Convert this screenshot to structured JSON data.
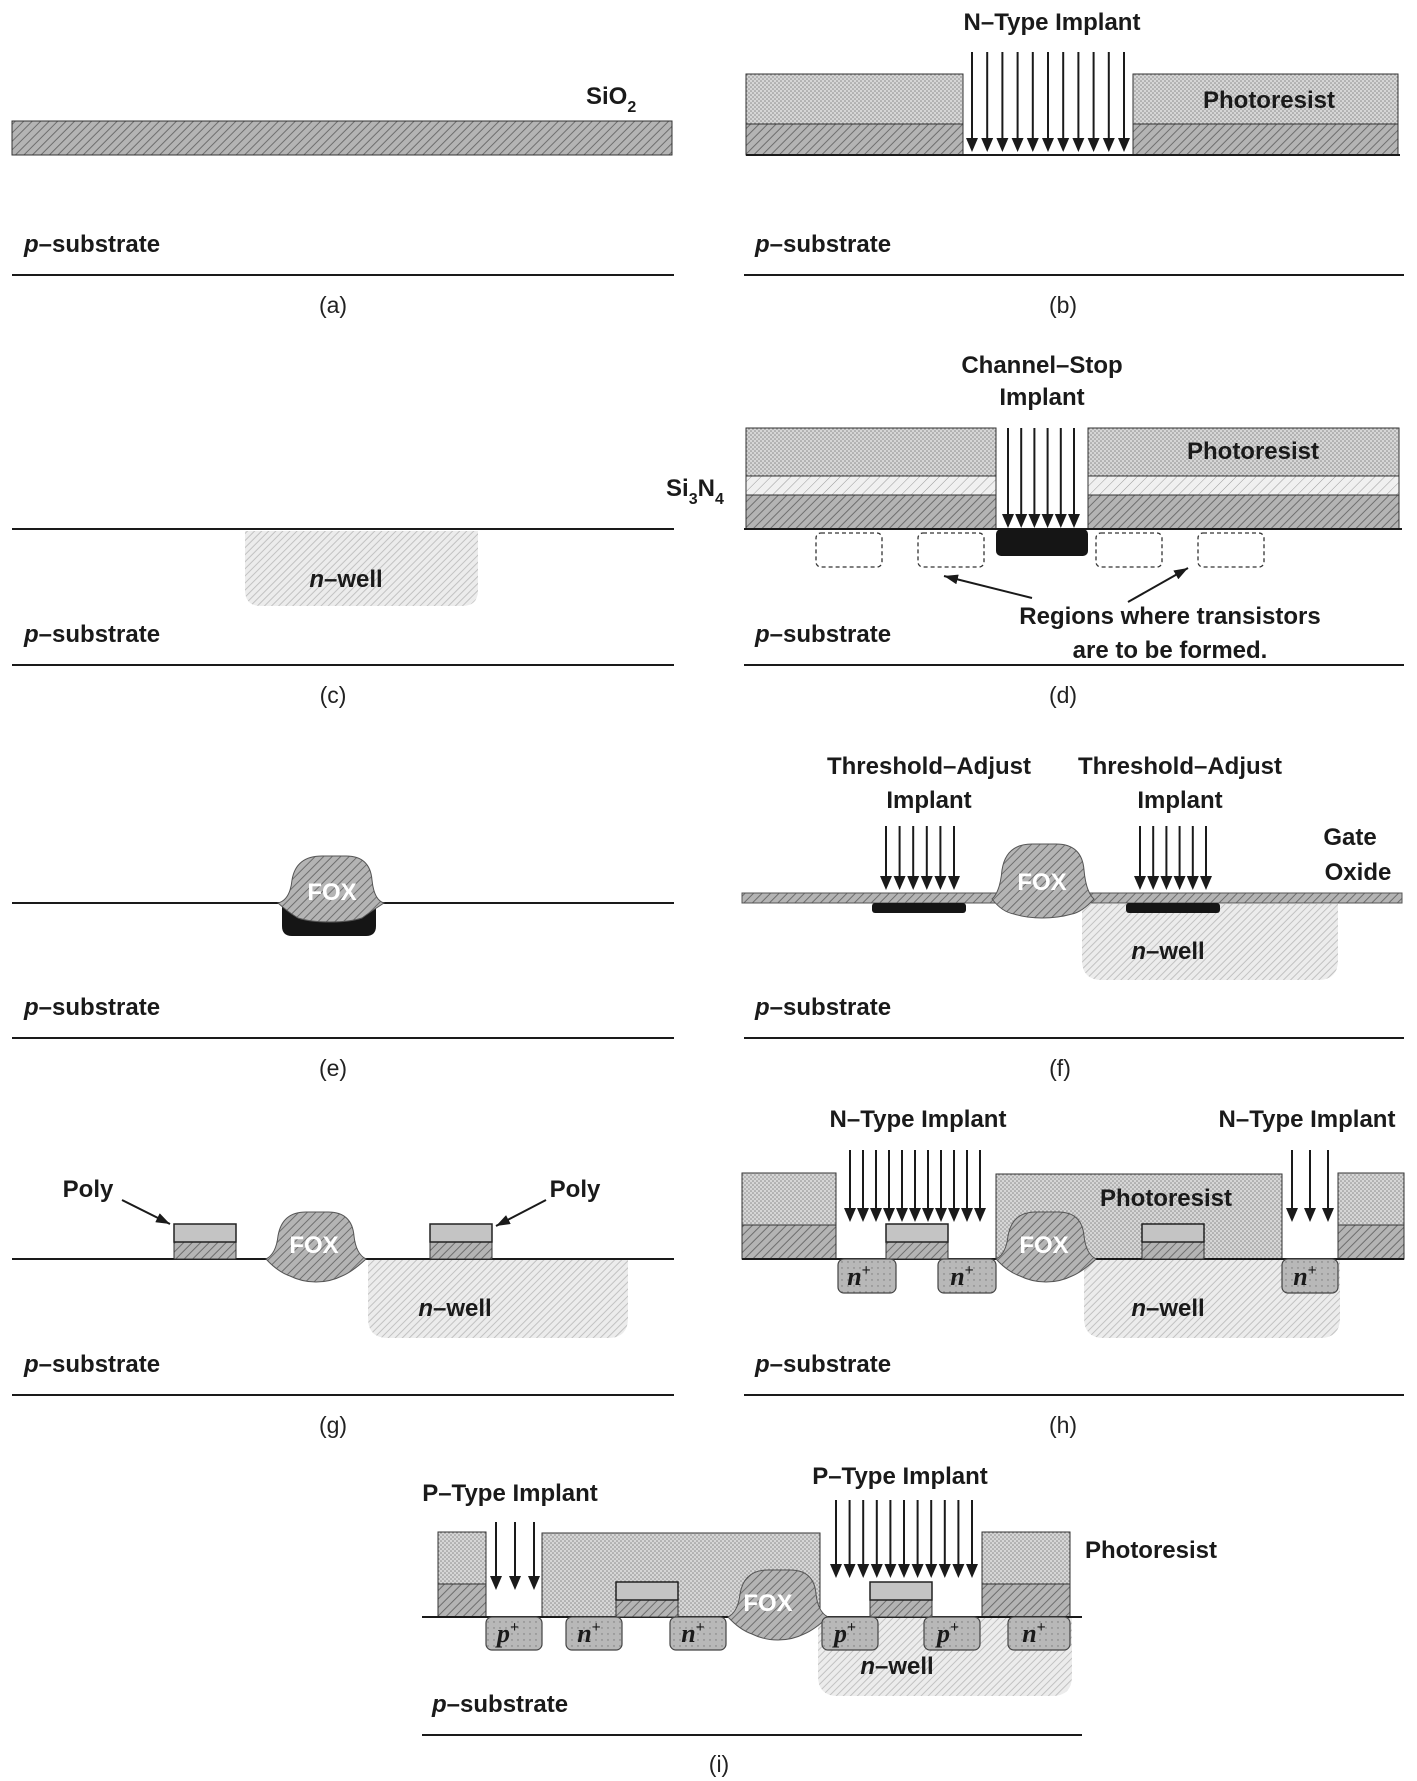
{
  "labels": {
    "sio2": "SiO",
    "sio2_sub": "2",
    "si3n4_a": "Si",
    "si3n4_sub1": "3",
    "si3n4_b": "N",
    "si3n4_sub2": "4",
    "p_substrate_p": "p",
    "p_substrate_rest": "–substrate",
    "n_well_n": "n",
    "n_well_rest": "–well",
    "photoresist": "Photoresist",
    "n_type_implant": "N–Type Implant",
    "p_type_implant": "P–Type Implant",
    "channel_stop_1": "Channel–Stop",
    "channel_stop_2": "Implant",
    "threshold_adjust_1": "Threshold–Adjust",
    "threshold_adjust_2": "Implant",
    "gate_1": "Gate",
    "gate_2": "Oxide",
    "regions_1": "Regions where transistors",
    "regions_2": "are to be formed.",
    "fox": "FOX",
    "poly": "Poly",
    "n_plus": "n",
    "p_plus": "p",
    "plus": "+"
  },
  "captions": [
    "(a)",
    "(b)",
    "(c)",
    "(d)",
    "(e)",
    "(f)",
    "(g)",
    "(h)",
    "(i)"
  ],
  "colors": {
    "oxide_fill": "#a8a8a8",
    "resist_fill": "#d4d4d4",
    "nitride_fill": "#e8e8e8",
    "well_fill": "#dcdcdc",
    "diffusion_fill": "#b8b8b8",
    "poly_fill": "#c4c4c4",
    "fox_fill": "#9a9a9a",
    "implant_black": "#151515",
    "line": "#1a1a1a"
  }
}
